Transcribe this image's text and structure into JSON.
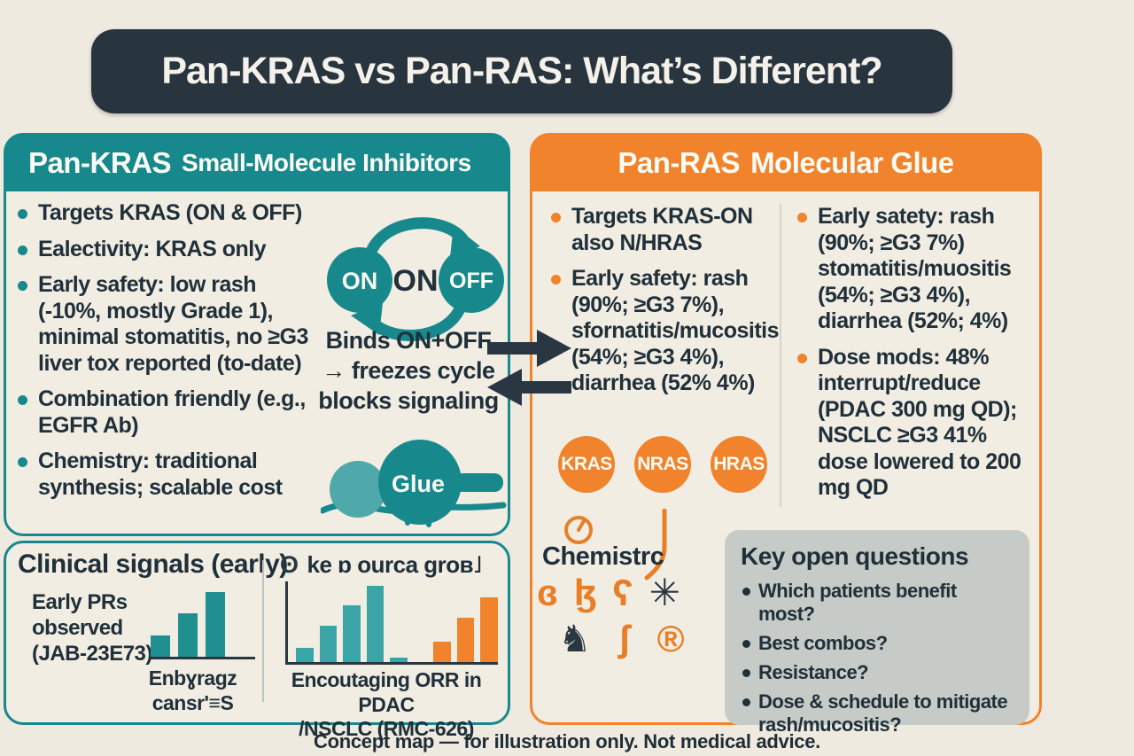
{
  "title": "Pan-KRAS vs Pan-RAS: What’s Different?",
  "left_panel": {
    "header_strong": "Pan-KRAS",
    "header_rest": "Small-Molecule Inhibitors",
    "bullets": [
      "Targets KRAS (ON & OFF)",
      "Ealectivity: KRAS only",
      "Early safety: low rash (-10%, mostly Grade 1), minimal stomatitis, no ≥G3 liver tox reported (to-date)",
      "Combination friendly (e.g., EGFR Ab)",
      "Chemistry: traditional synthesis; scalable cost"
    ],
    "cycle": {
      "circle_on": "ON",
      "circle_off": "OFF",
      "center_label": "ON"
    },
    "binds_caption": [
      "Binds ON+OFF",
      "→ freezes cycle",
      "blocks signaling"
    ],
    "glue_label": "Glue"
  },
  "right_panel": {
    "header_strong": "Pan-RAS",
    "header_rest": "Molecular Glue",
    "col1_bullets": [
      "Targets KRAS-ON also N/HRAS",
      "Early safety: rash (90%; ≥G3 7%), sfornatitis/mucositis (54%; ≥G3 4%), diarrhea (52% 4%)"
    ],
    "badges": [
      "KRAS",
      "NRAS",
      "HRAS"
    ],
    "chemistry_label": "Chemistrc",
    "chem_glyphs": [
      "ɞ",
      "ɮ",
      "ʕ",
      "✳",
      "♞",
      "ʃ",
      "®"
    ],
    "col2_bullets": [
      "Early satety: rash (90%; ≥G3 7%) stomatitis/muositis (54%; ≥G3 4%), diarrhea (52%; 4%)",
      "Dose mods: 48% interrupt/reduce (PDAC 300 mg QD); NSCLC ≥G3 41% dose lowered to 200 mg QD"
    ],
    "key_questions": {
      "title": "Key open questions",
      "items": [
        "Which patients benefit most?",
        "Best combos?",
        "Resistance?",
        "Dose & schedule to mitigate rash/mucositis?"
      ]
    }
  },
  "clinical_box": {
    "title": "Clinical signals (early)",
    "left_label": "Early PRs observed (JAB-23E73)",
    "left_caption_line1": "Enbɣragz",
    "left_caption_line2": "cansr'≡S",
    "right_header_icon": "ʘ",
    "right_header": "ke ɒ ourca groʙ˩",
    "right_caption_line1": "Encoutaging ORR in PDAC",
    "right_caption_line2": "/NSCLC (RMC-626)"
  },
  "footer": "Concept map — for illustration only.  Not medical advice.",
  "colors": {
    "teal": "#17898C",
    "teal_light": "#3AA4A6",
    "orange": "#F0832B",
    "slate_banner": "#28343E",
    "cream_background": "#EFEAE0",
    "gray_questions_box": "#C7CBC7",
    "ink_text": "#20303A"
  },
  "chart_data": [
    {
      "type": "bar",
      "location": "clinical-signals-left",
      "title": "Early PRs observed (JAB-23E73)",
      "caption": "Enbɣragz cansr'≡S",
      "axis": "baseline-only",
      "series": [
        {
          "name": "early-prs",
          "color": "teal",
          "values_relative": [
            30,
            62,
            92
          ]
        }
      ]
    },
    {
      "type": "bar",
      "location": "clinical-signals-right",
      "title": "ke ɒ ourca groʙ˩",
      "caption": "Encoutaging ORR in PDAC /NSCLC (RMC-626)",
      "axis": "left-and-baseline",
      "series": [
        {
          "name": "teal-group",
          "color": "teal-light",
          "values_relative": [
            18,
            45,
            70,
            95,
            6
          ]
        },
        {
          "name": "orange-group",
          "color": "orange",
          "values_relative": [
            25,
            55,
            80
          ]
        }
      ]
    }
  ]
}
